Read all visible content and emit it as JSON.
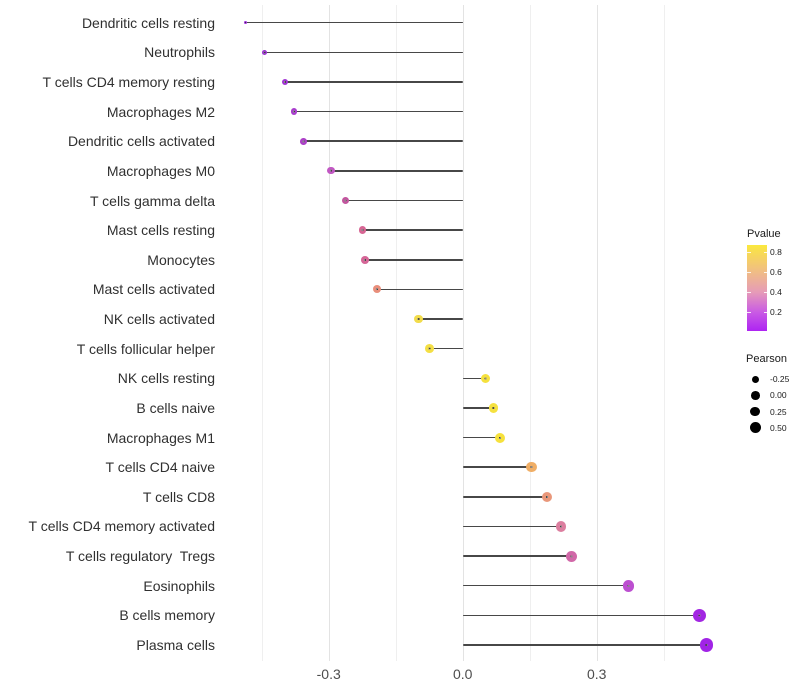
{
  "chart_data": {
    "type": "scatter",
    "variant": "lollipop",
    "title": "",
    "xlabel": "",
    "ylabel": "",
    "xlim": [
      -0.539,
      0.598
    ],
    "x_ticks": [
      {
        "value": -0.3,
        "label": "-0.3"
      },
      {
        "value": 0.0,
        "label": "0.0"
      },
      {
        "value": 0.3,
        "label": "0.3"
      }
    ],
    "x_minor_gridlines": [
      -0.45,
      -0.15,
      0.15,
      0.45
    ],
    "grid": "vertical-only",
    "baseline": 0.0,
    "points": [
      {
        "label": "Dendritic cells resting",
        "pearson": -0.487,
        "color": "#A02BE0",
        "size": 3.2
      },
      {
        "label": "Neutrophils",
        "pearson": -0.444,
        "color": "#9C2AD8",
        "size": 5.0
      },
      {
        "label": "T cells CD4 memory resting",
        "pearson": -0.398,
        "color": "#A134D4",
        "size": 6.2
      },
      {
        "label": "Macrophages M2",
        "pearson": -0.377,
        "color": "#A83CCD",
        "size": 6.4
      },
      {
        "label": "Dendritic cells activated",
        "pearson": -0.356,
        "color": "#AC40C8",
        "size": 6.6
      },
      {
        "label": "Macrophages M0",
        "pearson": -0.295,
        "color": "#C258C4",
        "size": 7.2
      },
      {
        "label": "T cells gamma delta",
        "pearson": -0.262,
        "color": "#C4549F",
        "size": 7.3
      },
      {
        "label": "Mast cells resting",
        "pearson": -0.224,
        "color": "#D76694",
        "size": 7.6
      },
      {
        "label": "Monocytes",
        "pearson": -0.218,
        "color": "#D56697",
        "size": 7.7
      },
      {
        "label": "Mast cells activated",
        "pearson": -0.191,
        "color": "#E88E7B",
        "size": 8.0
      },
      {
        "label": "NK cells activated",
        "pearson": -0.099,
        "color": "#F2DC4B",
        "size": 8.5
      },
      {
        "label": "T cells follicular helper",
        "pearson": -0.075,
        "color": "#F4DF45",
        "size": 8.7
      },
      {
        "label": "NK cells resting",
        "pearson": 0.051,
        "color": "#F5E13E",
        "size": 9.3
      },
      {
        "label": "B cells naive",
        "pearson": 0.069,
        "color": "#F5E140",
        "size": 9.6
      },
      {
        "label": "Macrophages M1",
        "pearson": 0.084,
        "color": "#F6E13C",
        "size": 9.9
      },
      {
        "label": "T cells CD4 naive",
        "pearson": 0.154,
        "color": "#F0AE66",
        "size": 10.1
      },
      {
        "label": "T cells CD8",
        "pearson": 0.189,
        "color": "#E9977A",
        "size": 10.5
      },
      {
        "label": "T cells CD4 memory activated",
        "pearson": 0.22,
        "color": "#DC7E9F",
        "size": 10.9
      },
      {
        "label": "T cells regulatory  Tregs",
        "pearson": 0.243,
        "color": "#D168A8",
        "size": 11.2
      },
      {
        "label": "Eosinophils",
        "pearson": 0.371,
        "color": "#BC4FD0",
        "size": 11.7
      },
      {
        "label": "B cells memory",
        "pearson": 0.531,
        "color": "#A227E2",
        "size": 13.0
      },
      {
        "label": "Plasma cells",
        "pearson": 0.546,
        "color": "#A124E6",
        "size": 13.3
      }
    ],
    "legend_pvalue": {
      "title": "Pvalue",
      "ticks": [
        {
          "label": "0.8",
          "pos": 0.081
        },
        {
          "label": "0.6",
          "pos": 0.314
        },
        {
          "label": "0.4",
          "pos": 0.547
        },
        {
          "label": "0.2",
          "pos": 0.779
        }
      ],
      "gradient": [
        {
          "pos": 0.0,
          "color": "#FBE93D"
        },
        {
          "pos": 0.08,
          "color": "#F8DC52"
        },
        {
          "pos": 0.31,
          "color": "#F0BD85"
        },
        {
          "pos": 0.55,
          "color": "#E69BB8"
        },
        {
          "pos": 0.78,
          "color": "#C95BE4"
        },
        {
          "pos": 1.0,
          "color": "#AE24F2"
        }
      ]
    },
    "legend_pearson": {
      "title": "Pearson",
      "items": [
        {
          "label": "-0.25",
          "size": 7.0
        },
        {
          "label": "0.00",
          "size": 8.7
        },
        {
          "label": "0.25",
          "size": 9.8
        },
        {
          "label": "0.50",
          "size": 11.0
        }
      ]
    }
  }
}
